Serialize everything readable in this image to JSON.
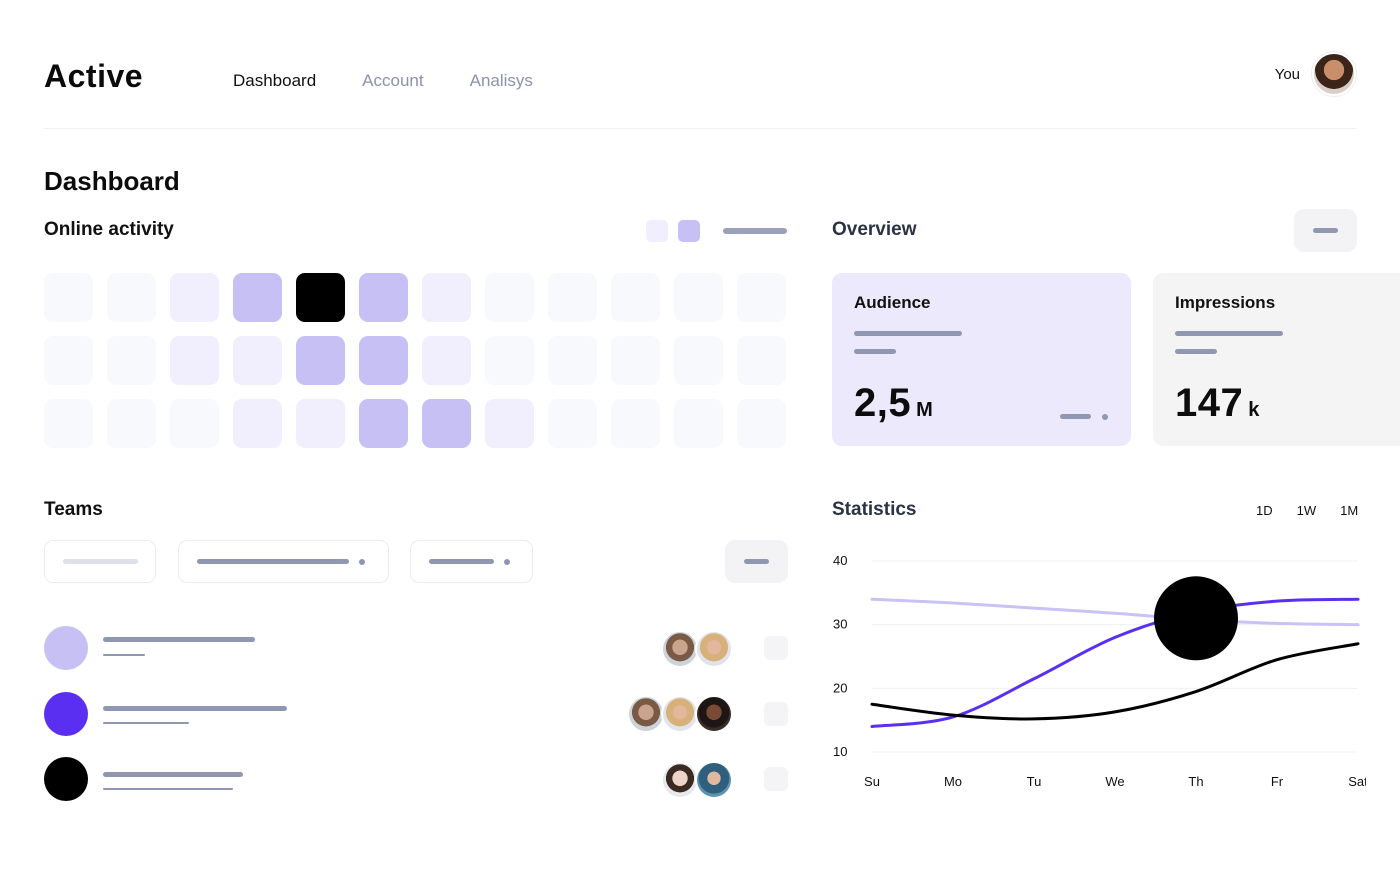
{
  "header": {
    "logo": "Active",
    "tabs": [
      {
        "label": "Dashboard",
        "active": true
      },
      {
        "label": "Account",
        "active": false
      },
      {
        "label": "Analisys",
        "active": false
      }
    ],
    "user_label": "You"
  },
  "page_title": "Dashboard",
  "online_activity": {
    "title": "Online activity",
    "legend_colors": [
      "#f1effd",
      "#c6c0f4"
    ],
    "grid_levels": [
      [
        0,
        0,
        1,
        2,
        3,
        2,
        1,
        0,
        0,
        0,
        0,
        0
      ],
      [
        0,
        0,
        1,
        1,
        2,
        2,
        1,
        0,
        0,
        0,
        0,
        0
      ],
      [
        0,
        0,
        0,
        1,
        1,
        2,
        2,
        1,
        0,
        0,
        0,
        0
      ]
    ]
  },
  "overview": {
    "title": "Overview",
    "cards": [
      {
        "title": "Audience",
        "value": "2,5",
        "unit": "M"
      },
      {
        "title": "Impressions",
        "value": "147",
        "unit": "k"
      }
    ]
  },
  "teams": {
    "title": "Teams",
    "rows": [
      {
        "color": "#c6c0f4",
        "member_icons": [
          "avatar-man-cap-icon",
          "avatar-woman-sunglasses-icon"
        ]
      },
      {
        "color": "#5b2ff2",
        "member_icons": [
          "avatar-man-cap-icon",
          "avatar-woman-sunglasses-icon",
          "avatar-woman-dark-hair-icon"
        ]
      },
      {
        "color": "#000000",
        "member_icons": [
          "avatar-woman-light-icon",
          "avatar-woman-glasses-hat-icon"
        ]
      }
    ]
  },
  "statistics": {
    "title": "Statistics",
    "ranges": [
      "1D",
      "1W",
      "1M"
    ]
  },
  "chart_data": {
    "type": "line",
    "x": [
      "Su",
      "Mo",
      "Tu",
      "We",
      "Th",
      "Fr",
      "Sat"
    ],
    "yticks": [
      10,
      20,
      30,
      40
    ],
    "ylim": [
      10,
      40
    ],
    "series": [
      {
        "color": "#c8c2f5",
        "values": [
          34,
          33.4,
          32.6,
          31.8,
          30.8,
          30.2,
          30
        ]
      },
      {
        "color": "#5b2ff2",
        "values": [
          14,
          15.5,
          21.5,
          28,
          32,
          33.7,
          34
        ]
      },
      {
        "color": "#000000",
        "values": [
          17.5,
          15.8,
          15.2,
          16.3,
          19.5,
          24.5,
          27
        ]
      }
    ],
    "highlight": {
      "x": "Th",
      "y": 31
    }
  }
}
